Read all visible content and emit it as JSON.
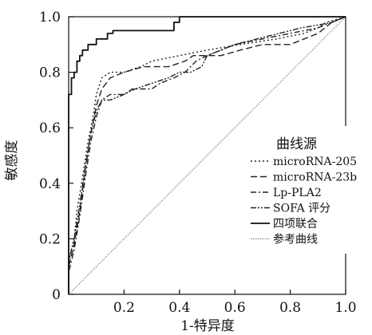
{
  "chart_data": {
    "type": "line",
    "title": "",
    "xlabel": "1-特异度",
    "ylabel": "敏感度",
    "xlim": [
      0,
      1
    ],
    "ylim": [
      0,
      1
    ],
    "x_ticks": [
      "0",
      "0.2",
      "0.4",
      "0.6",
      "0.8",
      "1.0"
    ],
    "y_ticks": [
      "0",
      "0.2",
      "0.4",
      "0.6",
      "0.8",
      "1.0"
    ],
    "grid": false,
    "legend": {
      "title": "曲线源",
      "placement": "right-middle"
    },
    "series": [
      {
        "name": "microRNA-205",
        "style": "dotted",
        "color": "#222222",
        "points": [
          [
            0,
            0
          ],
          [
            0,
            0.12
          ],
          [
            0.02,
            0.2
          ],
          [
            0.03,
            0.3
          ],
          [
            0.05,
            0.42
          ],
          [
            0.07,
            0.55
          ],
          [
            0.09,
            0.65
          ],
          [
            0.1,
            0.72
          ],
          [
            0.12,
            0.78
          ],
          [
            0.15,
            0.8
          ],
          [
            0.2,
            0.8
          ],
          [
            0.26,
            0.82
          ],
          [
            0.3,
            0.84
          ],
          [
            0.4,
            0.86
          ],
          [
            0.5,
            0.88
          ],
          [
            0.62,
            0.9
          ],
          [
            0.75,
            0.92
          ],
          [
            0.85,
            0.94
          ],
          [
            0.9,
            0.96
          ],
          [
            0.93,
            0.98
          ],
          [
            1,
            1
          ]
        ]
      },
      {
        "name": "microRNA-23b",
        "style": "dashed",
        "color": "#222222",
        "points": [
          [
            0,
            0
          ],
          [
            0,
            0.1
          ],
          [
            0.02,
            0.18
          ],
          [
            0.04,
            0.3
          ],
          [
            0.06,
            0.45
          ],
          [
            0.08,
            0.58
          ],
          [
            0.1,
            0.68
          ],
          [
            0.12,
            0.74
          ],
          [
            0.15,
            0.78
          ],
          [
            0.2,
            0.8
          ],
          [
            0.27,
            0.82
          ],
          [
            0.36,
            0.82
          ],
          [
            0.42,
            0.84
          ],
          [
            0.45,
            0.86
          ],
          [
            0.55,
            0.86
          ],
          [
            0.62,
            0.88
          ],
          [
            0.7,
            0.9
          ],
          [
            0.8,
            0.9
          ],
          [
            0.85,
            0.92
          ],
          [
            0.9,
            0.94
          ],
          [
            0.95,
            0.98
          ],
          [
            1,
            1
          ]
        ]
      },
      {
        "name": "Lp-PLA2",
        "style": "dash-dot",
        "color": "#222222",
        "points": [
          [
            0,
            0
          ],
          [
            0,
            0.08
          ],
          [
            0.02,
            0.16
          ],
          [
            0.04,
            0.28
          ],
          [
            0.06,
            0.42
          ],
          [
            0.08,
            0.55
          ],
          [
            0.1,
            0.64
          ],
          [
            0.12,
            0.7
          ],
          [
            0.15,
            0.72
          ],
          [
            0.2,
            0.72
          ],
          [
            0.23,
            0.74
          ],
          [
            0.3,
            0.74
          ],
          [
            0.33,
            0.76
          ],
          [
            0.38,
            0.78
          ],
          [
            0.42,
            0.8
          ],
          [
            0.46,
            0.84
          ],
          [
            0.5,
            0.86
          ],
          [
            0.55,
            0.88
          ],
          [
            0.6,
            0.9
          ],
          [
            0.7,
            0.92
          ],
          [
            0.8,
            0.94
          ],
          [
            0.9,
            0.96
          ],
          [
            0.95,
            0.98
          ],
          [
            1,
            1
          ]
        ]
      },
      {
        "name": "SOFA 评分",
        "style": "dash-dot-dot",
        "color": "#222222",
        "points": [
          [
            0,
            0
          ],
          [
            0,
            0.12
          ],
          [
            0.02,
            0.2
          ],
          [
            0.04,
            0.32
          ],
          [
            0.06,
            0.46
          ],
          [
            0.08,
            0.58
          ],
          [
            0.1,
            0.66
          ],
          [
            0.12,
            0.7
          ],
          [
            0.15,
            0.7
          ],
          [
            0.2,
            0.72
          ],
          [
            0.24,
            0.74
          ],
          [
            0.3,
            0.76
          ],
          [
            0.36,
            0.78
          ],
          [
            0.4,
            0.8
          ],
          [
            0.44,
            0.8
          ],
          [
            0.48,
            0.82
          ],
          [
            0.5,
            0.86
          ],
          [
            0.55,
            0.88
          ],
          [
            0.6,
            0.9
          ],
          [
            0.68,
            0.92
          ],
          [
            0.76,
            0.94
          ],
          [
            0.84,
            0.96
          ],
          [
            0.9,
            0.97
          ],
          [
            0.95,
            0.98
          ],
          [
            1,
            1
          ]
        ]
      },
      {
        "name": "四项联合",
        "style": "solid",
        "color": "#111111",
        "points": [
          [
            0,
            0
          ],
          [
            0,
            0.72
          ],
          [
            0.01,
            0.72
          ],
          [
            0.01,
            0.78
          ],
          [
            0.02,
            0.78
          ],
          [
            0.02,
            0.8
          ],
          [
            0.03,
            0.8
          ],
          [
            0.03,
            0.84
          ],
          [
            0.04,
            0.84
          ],
          [
            0.04,
            0.86
          ],
          [
            0.05,
            0.86
          ],
          [
            0.05,
            0.88
          ],
          [
            0.07,
            0.88
          ],
          [
            0.07,
            0.9
          ],
          [
            0.1,
            0.9
          ],
          [
            0.1,
            0.92
          ],
          [
            0.14,
            0.92
          ],
          [
            0.14,
            0.94
          ],
          [
            0.16,
            0.94
          ],
          [
            0.16,
            0.95
          ],
          [
            0.38,
            0.95
          ],
          [
            0.38,
            0.98
          ],
          [
            0.4,
            0.98
          ],
          [
            0.4,
            1
          ],
          [
            1,
            1
          ]
        ]
      },
      {
        "name": "参考曲线",
        "style": "reference",
        "color": "#666666",
        "points": [
          [
            0,
            0
          ],
          [
            1,
            1
          ]
        ]
      }
    ]
  }
}
